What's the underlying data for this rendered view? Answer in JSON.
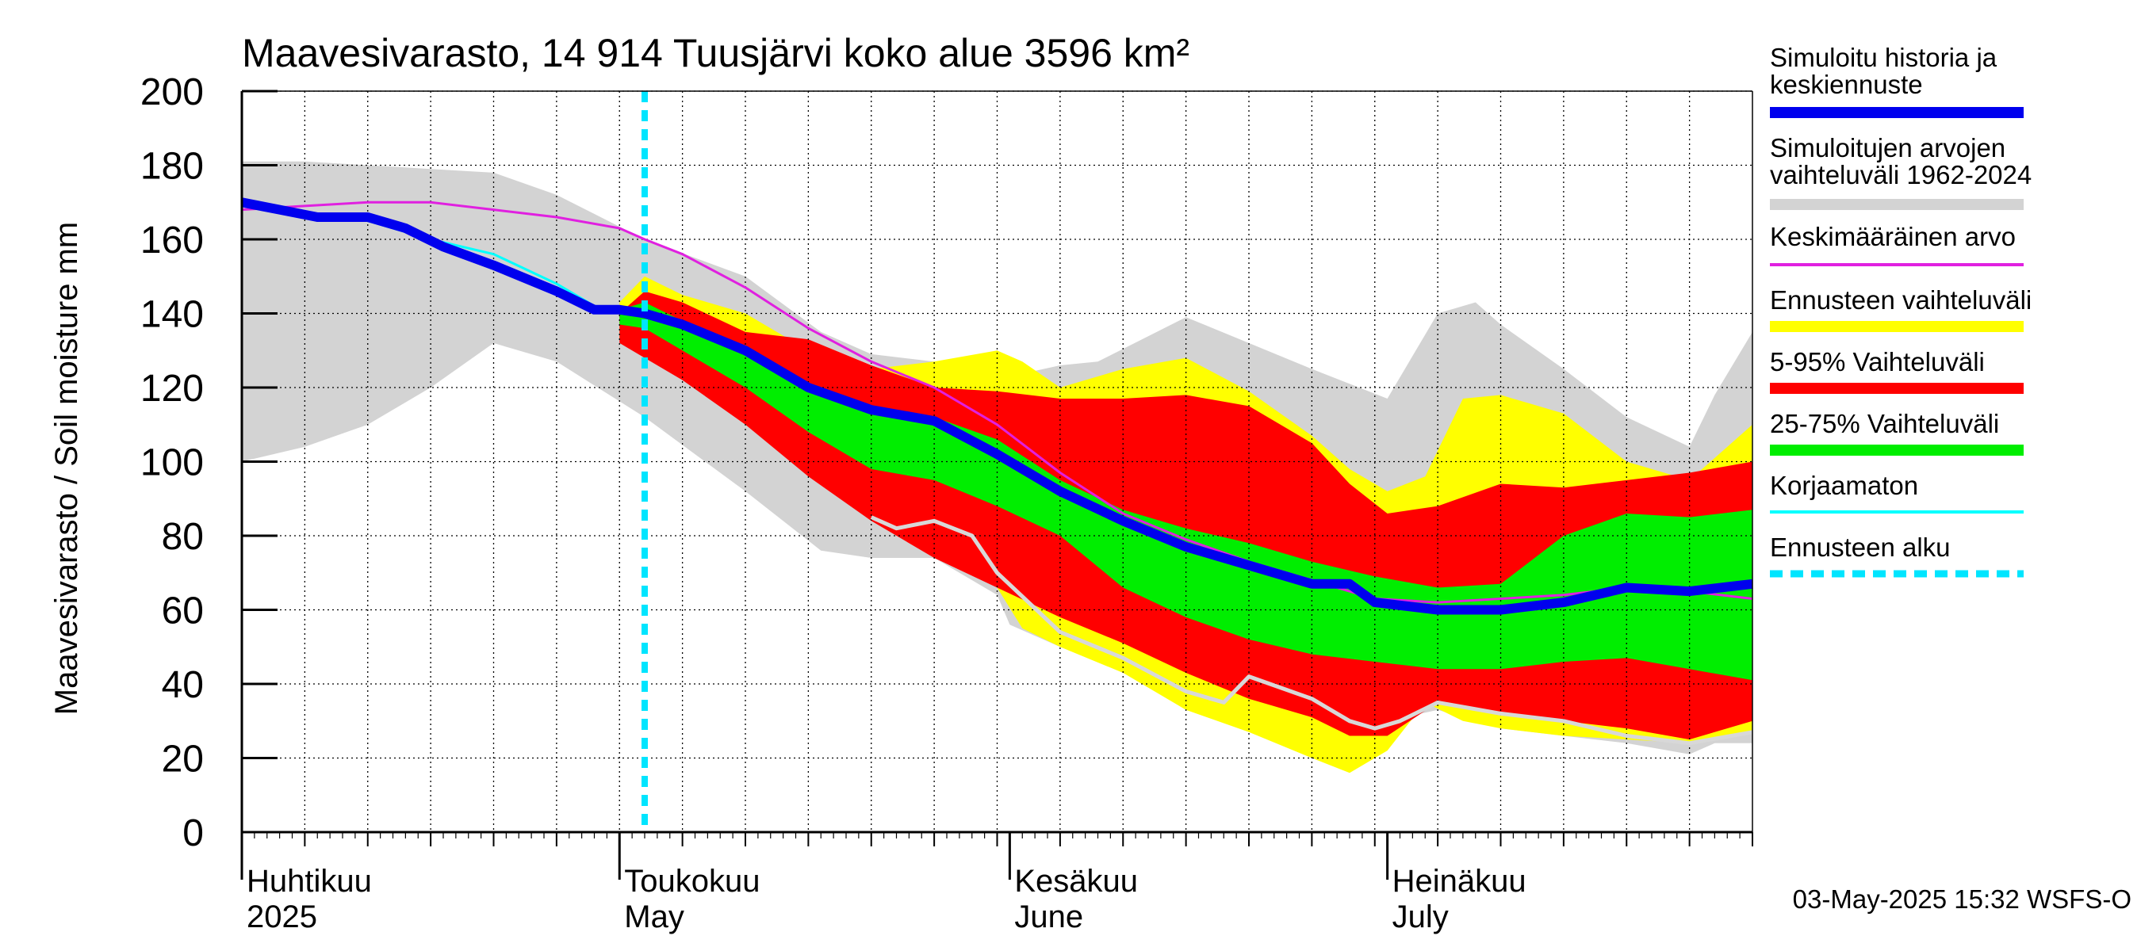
{
  "chart_data": {
    "type": "area",
    "title": "Maavesivarasto, 14 914 Tuusjärvi koko alue 3596 km²",
    "ylabel": "Maavesivarasto / Soil moisture   mm",
    "ylim": [
      0,
      200
    ],
    "yticks": [
      0,
      20,
      40,
      60,
      80,
      100,
      120,
      140,
      160,
      180,
      200
    ],
    "x_range_days": [
      0,
      120
    ],
    "x_start_date": "2025-04-01",
    "grid": true,
    "forecast_start_day": 32,
    "timestamp": "03-May-2025 15:32 WSFS-O",
    "months": [
      {
        "fi": "Huhtikuu",
        "en": "2025",
        "day": 0
      },
      {
        "fi": "Toukokuu",
        "en": "May",
        "day": 30
      },
      {
        "fi": "Kesäkuu",
        "en": "June",
        "day": 61
      },
      {
        "fi": "Heinäkuu",
        "en": "July",
        "day": 91
      }
    ],
    "legend": [
      {
        "label": "Simuloitu historia ja keskiennuste",
        "color": "#0000ee",
        "style": "thick"
      },
      {
        "label": "Simuloitujen arvojen vaihteluväli 1962-2024",
        "color": "#d3d3d3",
        "style": "thick"
      },
      {
        "label": "Keskimääräinen arvo",
        "color": "#e020e0",
        "style": "thin"
      },
      {
        "label": "Ennusteen vaihteluväli",
        "color": "#ffff00",
        "style": "thick"
      },
      {
        "label": "5-95% Vaihteluväli",
        "color": "#ff0000",
        "style": "thick"
      },
      {
        "label": "25-75% Vaihteluväli",
        "color": "#00ee00",
        "style": "thick"
      },
      {
        "label": "Korjaamaton",
        "color": "#00ffff",
        "style": "thin"
      },
      {
        "label": "Ennusteen alku",
        "color": "#00e5ff",
        "style": "dashed"
      }
    ],
    "series": [
      {
        "name": "Simuloitujen arvojen vaihteluväli 1962-2024",
        "color": "#d3d3d3",
        "x": [
          0,
          5,
          10,
          15,
          20,
          25,
          32,
          40,
          46,
          50,
          55,
          60,
          61,
          65,
          68,
          75,
          80,
          85,
          91,
          95,
          98,
          100,
          105,
          110,
          115,
          117,
          120
        ],
        "upper": [
          181,
          181,
          180,
          179,
          178,
          172,
          160,
          150,
          135,
          129,
          127,
          124,
          123,
          126,
          127,
          139,
          132,
          125,
          117,
          140,
          143,
          137,
          125,
          112,
          104,
          118,
          135
        ],
        "lower": [
          100,
          104,
          110,
          120,
          132,
          127,
          112,
          92,
          76,
          74,
          74,
          64,
          56,
          50,
          47,
          42,
          36,
          32,
          30,
          33,
          30,
          28,
          26,
          24,
          21,
          24,
          24
        ]
      },
      {
        "name": "Ennusteen vaihteluväli",
        "color": "#ffff00",
        "x": [
          30,
          32,
          35,
          40,
          45,
          50,
          55,
          60,
          62,
          65,
          70,
          75,
          80,
          85,
          88,
          91,
          94,
          97,
          100,
          105,
          110,
          115,
          120
        ],
        "upper": [
          143,
          150,
          145,
          140,
          130,
          125,
          127,
          130,
          127,
          120,
          125,
          128,
          119,
          107,
          98,
          92,
          96,
          117,
          118,
          113,
          100,
          95,
          110
        ],
        "lower": [
          133,
          130,
          125,
          110,
          98,
          85,
          80,
          66,
          55,
          50,
          43,
          33,
          27,
          20,
          16,
          22,
          35,
          30,
          28,
          26,
          25,
          24,
          27
        ]
      },
      {
        "name": "5-95% Vaihteluväli",
        "color": "#ff0000",
        "x": [
          30,
          32,
          35,
          40,
          45,
          50,
          55,
          60,
          65,
          70,
          75,
          80,
          85,
          88,
          91,
          95,
          100,
          105,
          110,
          115,
          120
        ],
        "upper": [
          140,
          146,
          143,
          135,
          133,
          126,
          120,
          119,
          117,
          117,
          118,
          115,
          105,
          94,
          86,
          88,
          94,
          93,
          95,
          97,
          100
        ],
        "lower": [
          132,
          128,
          122,
          110,
          96,
          84,
          74,
          66,
          58,
          51,
          43,
          36,
          31,
          26,
          26,
          35,
          32,
          30,
          28,
          25,
          30
        ]
      },
      {
        "name": "25-75% Vaihteluväli",
        "color": "#00ee00",
        "x": [
          30,
          32,
          35,
          40,
          45,
          50,
          55,
          60,
          65,
          70,
          75,
          80,
          85,
          90,
          95,
          100,
          105,
          110,
          115,
          120
        ],
        "upper": [
          141,
          143,
          138,
          130,
          120,
          114,
          112,
          106,
          95,
          87,
          82,
          78,
          73,
          69,
          66,
          67,
          80,
          86,
          85,
          87
        ],
        "lower": [
          137,
          136,
          130,
          120,
          108,
          98,
          95,
          88,
          80,
          66,
          58,
          52,
          48,
          46,
          44,
          44,
          46,
          47,
          44,
          41
        ]
      },
      {
        "name": "Keskimääräinen arvo",
        "color": "#e020e0",
        "x": [
          0,
          5,
          10,
          15,
          20,
          25,
          30,
          32,
          35,
          40,
          45,
          50,
          55,
          60,
          65,
          70,
          75,
          80,
          85,
          90,
          95,
          100,
          105,
          110,
          115,
          120
        ],
        "values": [
          168,
          169,
          170,
          170,
          168,
          166,
          163,
          160,
          156,
          147,
          136,
          127,
          120,
          110,
          97,
          86,
          79,
          73,
          68,
          63,
          62,
          63,
          64,
          66,
          65,
          63
        ]
      },
      {
        "name": "Korjaamaton",
        "color": "#00ffff",
        "x": [
          0,
          5,
          10,
          15,
          20,
          25,
          28,
          30,
          32
        ],
        "values": [
          170,
          167,
          165,
          160,
          156,
          148,
          142,
          141,
          141
        ]
      },
      {
        "name": "Simuloitu historia ja keskiennuste",
        "color": "#0000ee",
        "x": [
          0,
          3,
          6,
          10,
          13,
          16,
          20,
          25,
          28,
          30,
          32,
          35,
          40,
          45,
          50,
          55,
          60,
          65,
          70,
          75,
          80,
          85,
          88,
          90,
          95,
          100,
          105,
          110,
          115,
          120
        ],
        "values": [
          170,
          168,
          166,
          166,
          163,
          158,
          153,
          146,
          141,
          141,
          140,
          137,
          130,
          120,
          114,
          111,
          102,
          92,
          84,
          77,
          72,
          67,
          67,
          62,
          60,
          60,
          62,
          66,
          65,
          67
        ]
      },
      {
        "name": "Korjaamaton ennuste",
        "color": "#d8d8d8",
        "x": [
          50,
          52,
          55,
          58,
          60,
          65,
          70,
          75,
          78,
          80,
          85,
          88,
          90,
          92,
          95,
          100,
          105,
          110,
          115,
          120
        ],
        "values": [
          85,
          82,
          84,
          80,
          70,
          54,
          47,
          38,
          35,
          42,
          36,
          30,
          28,
          30,
          35,
          32,
          30,
          26,
          24,
          27
        ]
      }
    ]
  }
}
